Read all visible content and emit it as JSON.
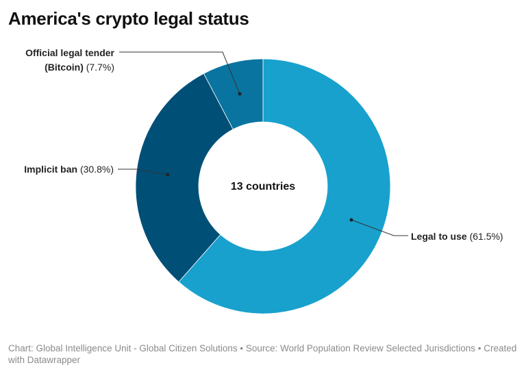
{
  "title": "America's crypto legal status",
  "chart_data": {
    "type": "pie",
    "variant": "donut",
    "title": "America's crypto legal status",
    "center_label": "13 countries",
    "slices": [
      {
        "name": "Legal to use",
        "value": 61.5,
        "value_label": "(61.5%)",
        "color": "#18a1cd"
      },
      {
        "name": "Implicit ban",
        "value": 30.8,
        "value_label": "(30.8%)",
        "color": "#004f77"
      },
      {
        "name": "Official legal tender (Bitcoin)",
        "name_lines": [
          "Official legal tender",
          "(Bitcoin)"
        ],
        "value": 7.7,
        "value_label": "(7.7%)",
        "color": "#0a74a1"
      }
    ]
  },
  "footer": "Chart: Global Intelligence Unit - Global Citizen Solutions  • Source: World Population Review Selected Jurisdictions • Created with Datawrapper"
}
